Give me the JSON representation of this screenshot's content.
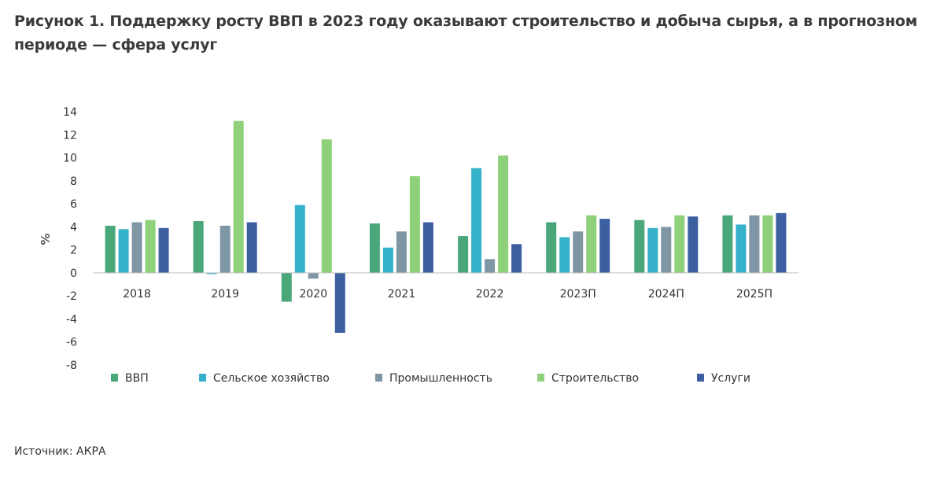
{
  "figure": {
    "title": "Рисунок 1. Поддержку росту ВВП в 2023 году оказывают строительство и добыча сырья, а в прогнозном периоде — сфера услуг",
    "source": "Источник: АКРА"
  },
  "chart_data": {
    "type": "bar",
    "title": "",
    "xlabel": "",
    "ylabel": "%",
    "ylim": [
      -8,
      14
    ],
    "yticks": [
      -8,
      -6,
      -4,
      -2,
      0,
      2,
      4,
      6,
      8,
      10,
      12,
      14
    ],
    "grid": false,
    "legend_position": "bottom",
    "categories": [
      "2018",
      "2019",
      "2020",
      "2021",
      "2022",
      "2023П",
      "2024П",
      "2025П"
    ],
    "series": [
      {
        "name": "ВВП",
        "color": "#4aa77a",
        "values": [
          4.1,
          4.5,
          -2.5,
          4.3,
          3.2,
          4.4,
          4.6,
          5.0
        ]
      },
      {
        "name": "Сельское хозяйство",
        "color": "#35b1c9",
        "values": [
          3.8,
          -0.1,
          5.9,
          2.2,
          9.1,
          3.1,
          3.9,
          4.2
        ]
      },
      {
        "name": "Промышленность",
        "color": "#7f97a5",
        "values": [
          4.4,
          4.1,
          -0.5,
          3.6,
          1.2,
          3.6,
          4.0,
          5.0
        ]
      },
      {
        "name": "Строительство",
        "color": "#8fd07b",
        "values": [
          4.6,
          13.2,
          11.6,
          8.4,
          10.2,
          5.0,
          5.0,
          5.0
        ]
      },
      {
        "name": "Услуги",
        "color": "#3c5fa1",
        "values": [
          3.9,
          4.4,
          -5.2,
          4.4,
          2.5,
          4.7,
          4.9,
          5.2
        ]
      }
    ]
  }
}
